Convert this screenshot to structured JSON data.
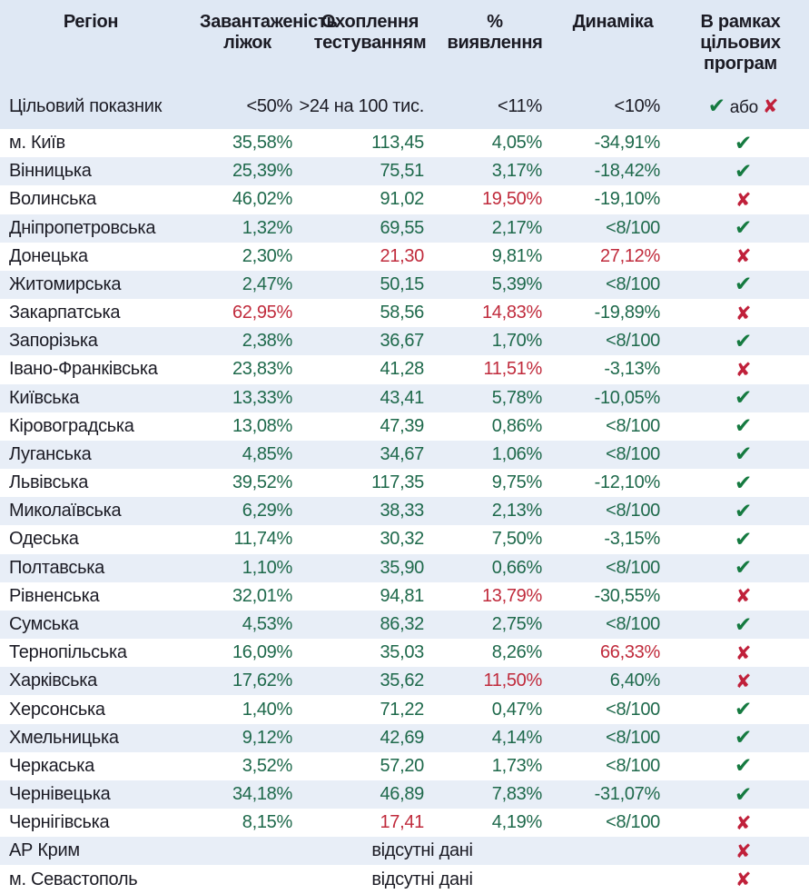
{
  "colors": {
    "header_bg": "#dfe8f4",
    "stripe_bg": "#e8eef7",
    "ink": "#1b1b24",
    "value_green": "#1e694b",
    "value_red": "#c02b3c",
    "check_green": "#157a40",
    "cross_red": "#c0203a"
  },
  "icons": {
    "check_glyph": "✔",
    "cross_glyph": "✘"
  },
  "chart_data": {
    "type": "table",
    "columns": [
      "Регіон",
      "Завантаженість\nліжок",
      "Охоплення\nтестуванням",
      "%\nвиявлення",
      "Динаміка",
      "В рамках\nцільових\nпрограм"
    ],
    "target_row": {
      "label": "Цільовий показник",
      "bed_occupancy": "<50%",
      "testing_coverage": ">24 на 100 тис.",
      "detection_rate": "<11%",
      "dynamics": "<10%",
      "or_label": "або"
    },
    "rows": [
      {
        "region": "м. Київ",
        "values": [
          [
            "35,58%",
            "g"
          ],
          [
            "113,45",
            "g"
          ],
          [
            "4,05%",
            "g"
          ],
          [
            "-34,91%",
            "g"
          ]
        ],
        "program": "check"
      },
      {
        "region": "Вінницька",
        "values": [
          [
            "25,39%",
            "g"
          ],
          [
            "75,51",
            "g"
          ],
          [
            "3,17%",
            "g"
          ],
          [
            "-18,42%",
            "g"
          ]
        ],
        "program": "check"
      },
      {
        "region": "Волинська",
        "values": [
          [
            "46,02%",
            "g"
          ],
          [
            "91,02",
            "g"
          ],
          [
            "19,50%",
            "r"
          ],
          [
            "-19,10%",
            "g"
          ]
        ],
        "program": "cross"
      },
      {
        "region": "Дніпропетровська",
        "values": [
          [
            "1,32%",
            "g"
          ],
          [
            "69,55",
            "g"
          ],
          [
            "2,17%",
            "g"
          ],
          [
            "<8/100",
            "g"
          ]
        ],
        "program": "check"
      },
      {
        "region": "Донецька",
        "values": [
          [
            "2,30%",
            "g"
          ],
          [
            "21,30",
            "r"
          ],
          [
            "9,81%",
            "g"
          ],
          [
            "27,12%",
            "r"
          ]
        ],
        "program": "cross"
      },
      {
        "region": "Житомирська",
        "values": [
          [
            "2,47%",
            "g"
          ],
          [
            "50,15",
            "g"
          ],
          [
            "5,39%",
            "g"
          ],
          [
            "<8/100",
            "g"
          ]
        ],
        "program": "check"
      },
      {
        "region": "Закарпатська",
        "values": [
          [
            "62,95%",
            "r"
          ],
          [
            "58,56",
            "g"
          ],
          [
            "14,83%",
            "r"
          ],
          [
            "-19,89%",
            "g"
          ]
        ],
        "program": "cross"
      },
      {
        "region": "Запорізька",
        "values": [
          [
            "2,38%",
            "g"
          ],
          [
            "36,67",
            "g"
          ],
          [
            "1,70%",
            "g"
          ],
          [
            "<8/100",
            "g"
          ]
        ],
        "program": "check"
      },
      {
        "region": "Івано-Франківська",
        "values": [
          [
            "23,83%",
            "g"
          ],
          [
            "41,28",
            "g"
          ],
          [
            "11,51%",
            "r"
          ],
          [
            "-3,13%",
            "g"
          ]
        ],
        "program": "cross"
      },
      {
        "region": "Київська",
        "values": [
          [
            "13,33%",
            "g"
          ],
          [
            "43,41",
            "g"
          ],
          [
            "5,78%",
            "g"
          ],
          [
            "-10,05%",
            "g"
          ]
        ],
        "program": "check"
      },
      {
        "region": "Кіровоградська",
        "values": [
          [
            "13,08%",
            "g"
          ],
          [
            "47,39",
            "g"
          ],
          [
            "0,86%",
            "g"
          ],
          [
            "<8/100",
            "g"
          ]
        ],
        "program": "check"
      },
      {
        "region": "Луганська",
        "values": [
          [
            "4,85%",
            "g"
          ],
          [
            "34,67",
            "g"
          ],
          [
            "1,06%",
            "g"
          ],
          [
            "<8/100",
            "g"
          ]
        ],
        "program": "check"
      },
      {
        "region": "Львівська",
        "values": [
          [
            "39,52%",
            "g"
          ],
          [
            "117,35",
            "g"
          ],
          [
            "9,75%",
            "g"
          ],
          [
            "-12,10%",
            "g"
          ]
        ],
        "program": "check"
      },
      {
        "region": "Миколаївська",
        "values": [
          [
            "6,29%",
            "g"
          ],
          [
            "38,33",
            "g"
          ],
          [
            "2,13%",
            "g"
          ],
          [
            "<8/100",
            "g"
          ]
        ],
        "program": "check"
      },
      {
        "region": "Одеська",
        "values": [
          [
            "11,74%",
            "g"
          ],
          [
            "30,32",
            "g"
          ],
          [
            "7,50%",
            "g"
          ],
          [
            "-3,15%",
            "g"
          ]
        ],
        "program": "check"
      },
      {
        "region": "Полтавська",
        "values": [
          [
            "1,10%",
            "g"
          ],
          [
            "35,90",
            "g"
          ],
          [
            "0,66%",
            "g"
          ],
          [
            "<8/100",
            "g"
          ]
        ],
        "program": "check"
      },
      {
        "region": "Рівненська",
        "values": [
          [
            "32,01%",
            "g"
          ],
          [
            "94,81",
            "g"
          ],
          [
            "13,79%",
            "r"
          ],
          [
            "-30,55%",
            "g"
          ]
        ],
        "program": "cross"
      },
      {
        "region": "Сумська",
        "values": [
          [
            "4,53%",
            "g"
          ],
          [
            "86,32",
            "g"
          ],
          [
            "2,75%",
            "g"
          ],
          [
            "<8/100",
            "g"
          ]
        ],
        "program": "check"
      },
      {
        "region": "Тернопільська",
        "values": [
          [
            "16,09%",
            "g"
          ],
          [
            "35,03",
            "g"
          ],
          [
            "8,26%",
            "g"
          ],
          [
            "66,33%",
            "r"
          ]
        ],
        "program": "cross"
      },
      {
        "region": "Харківська",
        "values": [
          [
            "17,62%",
            "g"
          ],
          [
            "35,62",
            "g"
          ],
          [
            "11,50%",
            "r"
          ],
          [
            "6,40%",
            "g"
          ]
        ],
        "program": "cross"
      },
      {
        "region": "Херсонська",
        "values": [
          [
            "1,40%",
            "g"
          ],
          [
            "71,22",
            "g"
          ],
          [
            "0,47%",
            "g"
          ],
          [
            "<8/100",
            "g"
          ]
        ],
        "program": "check"
      },
      {
        "region": "Хмельницька",
        "values": [
          [
            "9,12%",
            "g"
          ],
          [
            "42,69",
            "g"
          ],
          [
            "4,14%",
            "g"
          ],
          [
            "<8/100",
            "g"
          ]
        ],
        "program": "check"
      },
      {
        "region": "Черкаська",
        "values": [
          [
            "3,52%",
            "g"
          ],
          [
            "57,20",
            "g"
          ],
          [
            "1,73%",
            "g"
          ],
          [
            "<8/100",
            "g"
          ]
        ],
        "program": "check"
      },
      {
        "region": "Чернівецька",
        "values": [
          [
            "34,18%",
            "g"
          ],
          [
            "46,89",
            "g"
          ],
          [
            "7,83%",
            "g"
          ],
          [
            "-31,07%",
            "g"
          ]
        ],
        "program": "check"
      },
      {
        "region": "Чернігівська",
        "values": [
          [
            "8,15%",
            "g"
          ],
          [
            "17,41",
            "r"
          ],
          [
            "4,19%",
            "g"
          ],
          [
            "<8/100",
            "g"
          ]
        ],
        "program": "cross"
      },
      {
        "region": "АР Крим",
        "no_data": "відсутні дані",
        "program": "cross"
      },
      {
        "region": "м. Севастополь",
        "no_data": "відсутні дані",
        "program": "cross"
      }
    ]
  }
}
